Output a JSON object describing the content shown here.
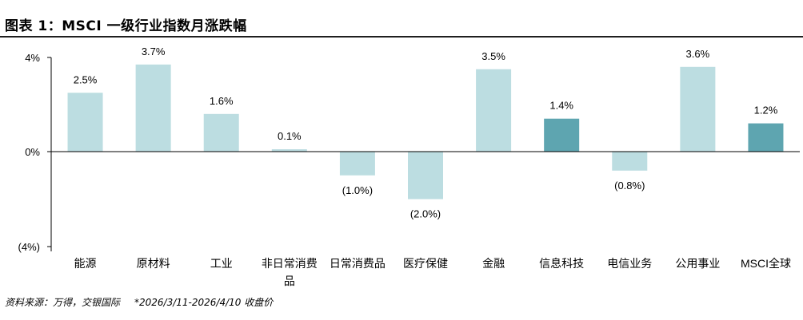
{
  "header": {
    "title": "图表 1：MSCI 一级行业指数月涨跌幅"
  },
  "footer": {
    "source": "资料来源：万得，交银国际",
    "note": "*2026/3/11-2026/4/10 收盘价"
  },
  "chart_data": {
    "type": "bar",
    "title": "",
    "xlabel": "",
    "ylabel": "",
    "ylim": [
      -4,
      4
    ],
    "yticks": [
      -4,
      0,
      4
    ],
    "ytick_labels": [
      "(4%)",
      "0%",
      "4%"
    ],
    "grid": false,
    "categories": [
      "能源",
      "原材料",
      "工业",
      "非日常消费品",
      "日常消费品",
      "医疗保健",
      "金融",
      "信息科技",
      "电信业务",
      "公用事业",
      "MSCI全球"
    ],
    "values": [
      2.5,
      3.7,
      1.6,
      0.1,
      -1.0,
      -2.0,
      3.5,
      1.4,
      -0.8,
      3.6,
      1.2
    ],
    "data_labels": [
      "2.5%",
      "3.7%",
      "1.6%",
      "0.1%",
      "(1.0%)",
      "(2.0%)",
      "3.5%",
      "1.4%",
      "(0.8%)",
      "3.6%",
      "1.2%"
    ],
    "colors": {
      "default": "#bcdde1",
      "highlight": "#5ea5b0"
    },
    "highlighted_categories": [
      "信息科技",
      "MSCI全球"
    ]
  }
}
